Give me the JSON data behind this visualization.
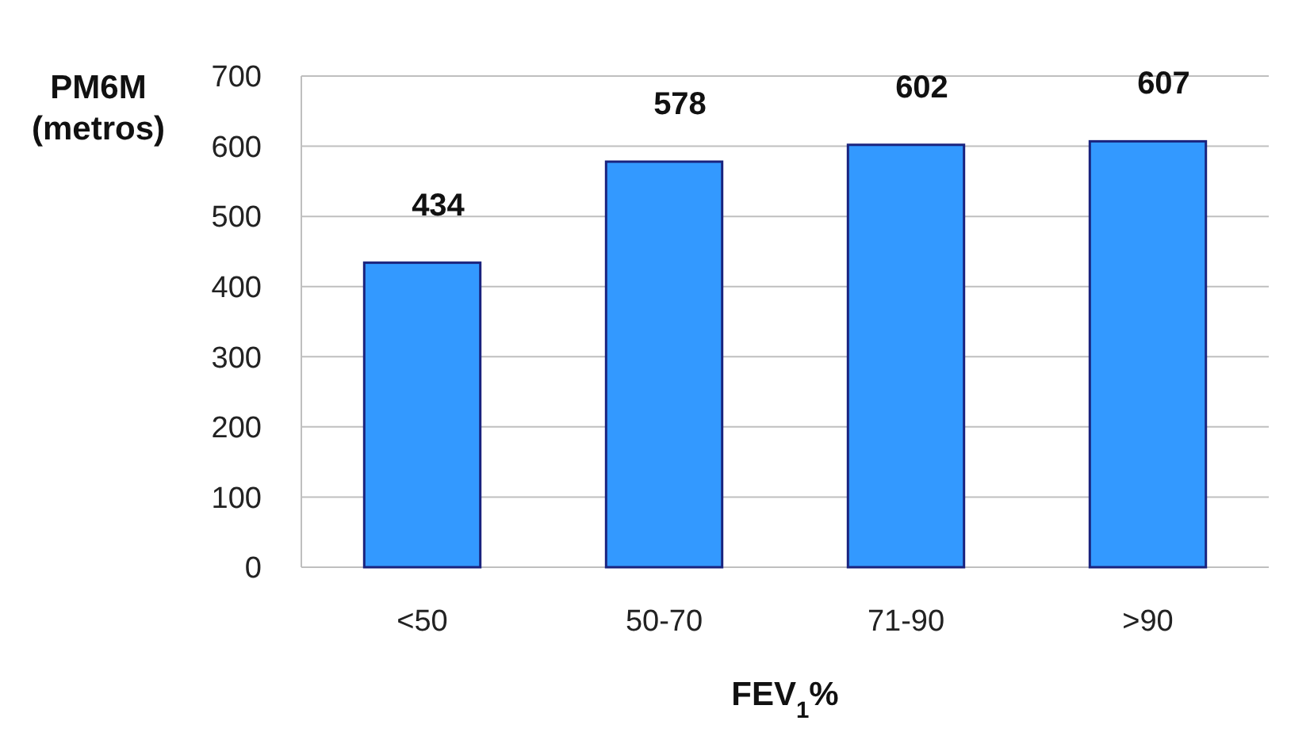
{
  "chart_data": {
    "type": "bar",
    "ylabel": "PM6M (metros)",
    "xlabel": "FEV$_{1}$%",
    "categories": [
      "<50",
      "50-70",
      "71-90",
      ">90"
    ],
    "values": [
      434,
      578,
      602,
      607
    ],
    "color": "#3399ff",
    "ylim": [
      0,
      700
    ],
    "yticks": [
      0,
      100,
      200,
      300,
      400,
      500,
      600,
      700
    ],
    "grid": "y",
    "data_labels": true
  }
}
